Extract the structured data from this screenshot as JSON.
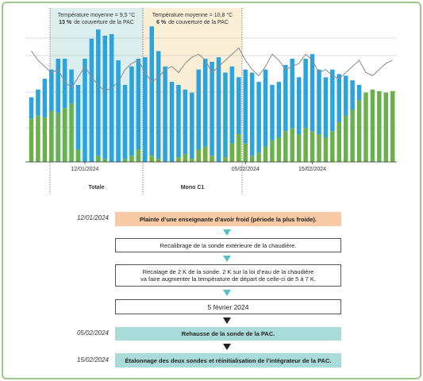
{
  "chart_data": {
    "type": "bar",
    "categories": [
      null,
      null,
      null,
      null,
      null,
      null,
      null,
      null,
      "12/01/2024",
      null,
      null,
      null,
      null,
      null,
      null,
      null,
      null,
      null,
      null,
      null,
      null,
      null,
      null,
      null,
      null,
      null,
      null,
      null,
      null,
      null,
      null,
      null,
      "05/02/2024",
      null,
      null,
      null,
      null,
      null,
      null,
      null,
      null,
      null,
      "15/02/2024",
      null,
      null,
      null,
      null,
      null,
      null,
      null,
      null,
      null,
      null,
      null,
      null
    ],
    "series": [
      {
        "color": "#6ab04c",
        "values": [
          28,
          30,
          29,
          33,
          32,
          35,
          38,
          8,
          0,
          0,
          4,
          2,
          0,
          0,
          2,
          4,
          8,
          0,
          4,
          2,
          0,
          0,
          3,
          5,
          2,
          8,
          10,
          4,
          0,
          3,
          12,
          18,
          12,
          4,
          6,
          10,
          14,
          16,
          20,
          22,
          18,
          22,
          20,
          18,
          16,
          20,
          26,
          30,
          34,
          40,
          45,
          47,
          46,
          45,
          46
        ]
      },
      {
        "color": "#2ba3dc",
        "values": [
          14,
          17,
          25,
          27,
          35,
          32,
          22,
          42,
          67,
          80,
          82,
          80,
          83,
          66,
          48,
          58,
          59,
          68,
          84,
          70,
          62,
          52,
          47,
          42,
          43,
          52,
          57,
          61,
          68,
          55,
          50,
          37,
          48,
          54,
          46,
          50,
          36,
          36,
          43,
          45,
          37,
          45,
          50,
          42,
          39,
          40,
          31,
          26,
          19,
          10,
          0,
          0,
          0,
          0,
          0
        ]
      },
      {
        "type": "line",
        "color": "#8c8c8c",
        "values": [
          72,
          66,
          62,
          58,
          60,
          52,
          48,
          55,
          62,
          55,
          50,
          46,
          48,
          52,
          60,
          64,
          66,
          58,
          52,
          55,
          60,
          62,
          58,
          64,
          68,
          70,
          66,
          58,
          62,
          66,
          70,
          74,
          66,
          60,
          56,
          62,
          70,
          66,
          60,
          62,
          64,
          70,
          66,
          58,
          60,
          56,
          54,
          58,
          62,
          66,
          58,
          56,
          60,
          64,
          66
        ]
      }
    ],
    "ylim": [
      0,
      100
    ],
    "regions": [
      {
        "color": "#dcefee",
        "line1": "Température moyenne = 9,5 °C",
        "bold": "13 %",
        "line2": "de couverture de la PAC",
        "label": "Totale"
      },
      {
        "color": "#fbeed6",
        "line1": "Température moyenne = 10,8 °C",
        "bold": "6 %",
        "line2": "de couverture de la PAC",
        "label": "Mono C1"
      }
    ]
  },
  "flow": {
    "steps": [
      {
        "date": "12/01/2024",
        "lines": [
          "Plainte d’une enseignante d’avoir froid (période la plus froide)."
        ]
      },
      {
        "lines": [
          "Recalibrage de la sonde extérieure de la chaudière."
        ]
      },
      {
        "lines": [
          "Recalage de 2 K de la sonde. 2 K sur la loi d’eau de la chaudière",
          "va faire augmenter la température de départ de celle-ci de 5 à 7 K."
        ]
      },
      {
        "lines": [
          "5 février 2024"
        ]
      },
      {
        "date": "05/02/2024",
        "lines": [
          "Rehausse de la sonde de la PAC."
        ]
      },
      {
        "date": "15/02/2024",
        "lines": [
          "Étalonnage des deux sondes et réinitialisation de l’intégrateur de la PAC."
        ]
      }
    ]
  }
}
